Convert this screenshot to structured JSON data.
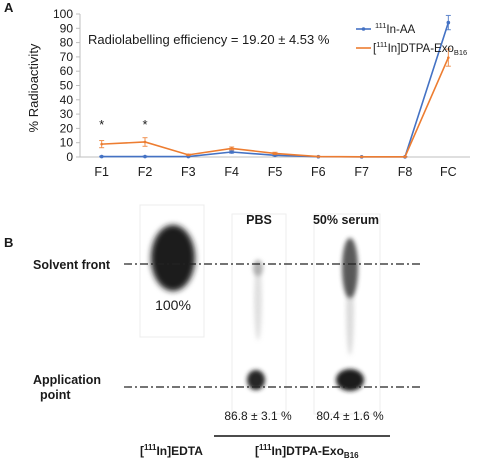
{
  "panels": {
    "a": {
      "letter": "A"
    },
    "b": {
      "letter": "B"
    }
  },
  "chart_data": {
    "type": "line",
    "ylabel": "% Radioactivity",
    "ylim": [
      0,
      100
    ],
    "yticks": [
      0,
      10,
      20,
      30,
      40,
      50,
      60,
      70,
      80,
      90,
      100
    ],
    "categories": [
      "F1",
      "F2",
      "F3",
      "F4",
      "F5",
      "F6",
      "F7",
      "F8",
      "FC"
    ],
    "annotation": "Radiolabelling efficiency = 19.20 ± 4.53 %",
    "significance_marks": [
      {
        "category": "F1",
        "symbol": "*"
      },
      {
        "category": "F2",
        "symbol": "*"
      }
    ],
    "legend_position": "top-right",
    "series": [
      {
        "name_sup": "111",
        "name_main": "In-AA",
        "name_sub": "",
        "color": "#4472C4",
        "values": [
          0.3,
          0.3,
          0.3,
          3.5,
          1.2,
          0.2,
          0.1,
          0.1,
          94
        ],
        "errors": [
          0.3,
          0.3,
          0.2,
          0.8,
          0.5,
          0.1,
          0.1,
          0.1,
          5
        ]
      },
      {
        "name_pre": "[",
        "name_sup": "111",
        "name_main": "In]DTPA-Exo",
        "name_sub": "B16",
        "color": "#ED7D31",
        "values": [
          9,
          10.5,
          1.5,
          6,
          2.5,
          0.3,
          0.1,
          0.1,
          69.5
        ],
        "errors": [
          2.5,
          3,
          0.5,
          1,
          0.8,
          0.2,
          0.1,
          0.1,
          6
        ]
      }
    ]
  },
  "tlc": {
    "solvent_front_label": "Solvent front",
    "application_point_label_1": "Application",
    "application_point_label_2": "point",
    "lanes": [
      {
        "header": "",
        "value_label": "100%"
      },
      {
        "header": "PBS",
        "value_label": "86.8 ± 3.1 %"
      },
      {
        "header": "50% serum",
        "value_label": "80.4 ± 1.6 %"
      }
    ],
    "bottom_labels": {
      "edta_pre": "[",
      "edta_sup": "111",
      "edta_main": "In]EDTA",
      "exo_pre": "[",
      "exo_sup": "111",
      "exo_main": "In]DTPA-Exo",
      "exo_sub": "B16"
    }
  }
}
